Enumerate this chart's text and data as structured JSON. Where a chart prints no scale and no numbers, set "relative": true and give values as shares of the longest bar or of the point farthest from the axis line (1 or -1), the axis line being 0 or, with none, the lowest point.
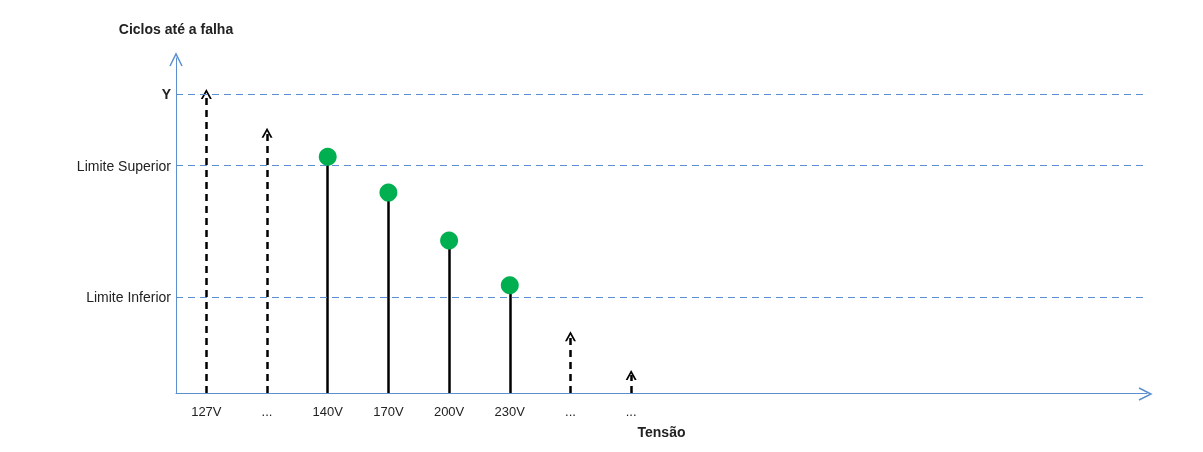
{
  "chart_data": {
    "type": "lollipop",
    "relative": true,
    "xlabel": "Tensão",
    "ylabel": "Ciclos até a falha",
    "categories": [
      "127V",
      "...",
      "140V",
      "170V",
      "200V",
      "230V",
      "...",
      "..."
    ],
    "series": [
      {
        "color": "#000000",
        "line_style": "dashed",
        "marker": "none",
        "values": [
          1.0,
          0.87,
          null,
          null,
          null,
          null,
          0.19,
          0.06
        ]
      },
      {
        "color": "#00b050",
        "line_style": "solid",
        "marker": "circle",
        "values": [
          null,
          null,
          0.79,
          0.67,
          0.51,
          0.36,
          null,
          null
        ]
      }
    ],
    "ref_lines": [
      {
        "axis": "y",
        "value": 1.0,
        "label": "Y",
        "color": "#5b8fd0",
        "line_style": "dashed"
      },
      {
        "axis": "y",
        "value": 0.76,
        "label": "Limite Superior",
        "color": "#5b8fd0",
        "line_style": "dashed"
      },
      {
        "axis": "y",
        "value": 0.32,
        "label": "Limite Inferior",
        "color": "#5b8fd0",
        "line_style": "dashed"
      }
    ]
  }
}
